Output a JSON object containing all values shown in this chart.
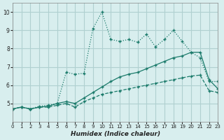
{
  "xlabel": "Humidex (Indice chaleur)",
  "bg_color": "#d8eeee",
  "grid_color": "#b0d0d0",
  "line_color": "#1a7a6a",
  "xlim": [
    0,
    23
  ],
  "ylim": [
    4,
    10.5
  ],
  "yticks": [
    5,
    6,
    7,
    8,
    9,
    10
  ],
  "xticks": [
    0,
    1,
    2,
    3,
    4,
    5,
    6,
    7,
    8,
    9,
    10,
    11,
    12,
    13,
    14,
    15,
    16,
    17,
    18,
    19,
    20,
    21,
    22,
    23
  ],
  "series1_x": [
    0,
    1,
    2,
    3,
    4,
    5,
    6,
    7,
    8,
    9,
    10,
    11,
    12,
    13,
    14,
    15,
    16,
    17,
    18,
    19,
    20,
    21,
    22,
    23
  ],
  "series1_y": [
    4.7,
    4.8,
    4.7,
    4.8,
    4.8,
    4.9,
    5.0,
    4.8,
    5.1,
    5.3,
    5.5,
    5.6,
    5.7,
    5.8,
    5.9,
    6.0,
    6.1,
    6.2,
    6.3,
    6.4,
    6.5,
    6.55,
    5.7,
    5.6
  ],
  "series2_x": [
    0,
    1,
    2,
    3,
    4,
    5,
    6,
    7,
    8,
    9,
    10,
    11,
    12,
    13,
    14,
    15,
    16,
    17,
    18,
    19,
    20,
    21,
    22,
    23
  ],
  "series2_y": [
    4.7,
    4.8,
    4.7,
    4.8,
    4.85,
    5.0,
    5.1,
    5.0,
    5.3,
    5.6,
    5.9,
    6.2,
    6.45,
    6.6,
    6.7,
    6.9,
    7.1,
    7.3,
    7.5,
    7.6,
    7.8,
    7.8,
    6.3,
    5.8
  ],
  "series3_x": [
    0,
    1,
    2,
    3,
    4,
    5,
    6,
    7,
    8,
    9,
    10,
    11,
    12,
    13,
    14,
    15,
    16,
    17,
    18,
    19,
    20,
    21,
    22,
    23
  ],
  "series3_y": [
    4.7,
    4.8,
    4.7,
    4.85,
    4.9,
    5.0,
    6.7,
    6.6,
    6.65,
    9.1,
    10.0,
    8.5,
    8.4,
    8.5,
    8.35,
    8.8,
    8.1,
    8.5,
    9.0,
    8.4,
    7.8,
    7.5,
    6.2,
    6.2
  ]
}
